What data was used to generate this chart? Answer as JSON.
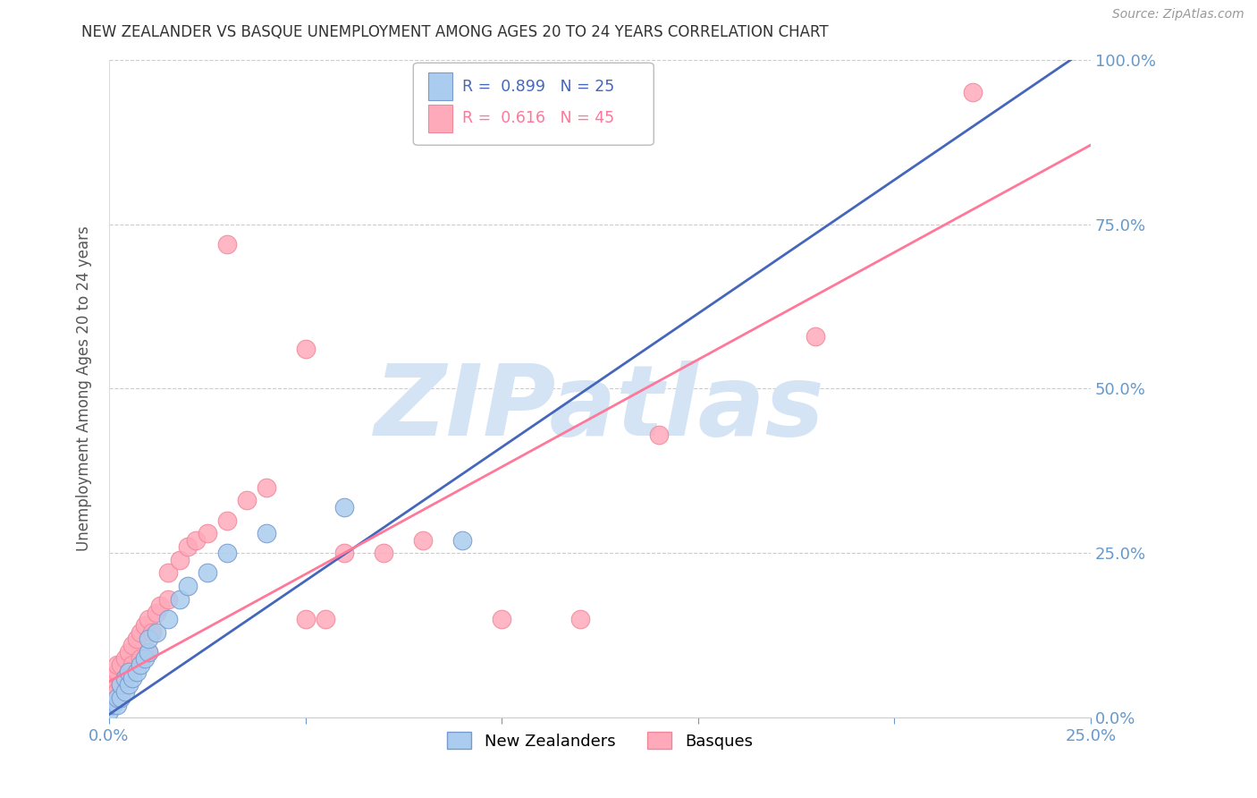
{
  "title": "NEW ZEALANDER VS BASQUE UNEMPLOYMENT AMONG AGES 20 TO 24 YEARS CORRELATION CHART",
  "source": "Source: ZipAtlas.com",
  "ylabel": "Unemployment Among Ages 20 to 24 years",
  "xlim": [
    0.0,
    0.25
  ],
  "ylim": [
    0.0,
    1.0
  ],
  "axis_color": "#6699cc",
  "grid_color": "#cccccc",
  "background_color": "#ffffff",
  "watermark_text": "ZIPatlas",
  "watermark_color": "#d4e4f4",
  "nz_color": "#aaccee",
  "nz_edge_color": "#7799cc",
  "basque_color": "#ffaabb",
  "basque_edge_color": "#ee8899",
  "nz_line_color": "#4466bb",
  "basque_line_color": "#ff7799",
  "nz_line_x": [
    0.0,
    0.25
  ],
  "nz_line_y": [
    0.005,
    1.02
  ],
  "basque_line_x": [
    0.0,
    0.25
  ],
  "basque_line_y": [
    0.055,
    0.87
  ],
  "nz_x": [
    0.0,
    0.001,
    0.002,
    0.002,
    0.003,
    0.003,
    0.004,
    0.004,
    0.005,
    0.005,
    0.006,
    0.007,
    0.008,
    0.009,
    0.01,
    0.01,
    0.012,
    0.015,
    0.018,
    0.02,
    0.025,
    0.03,
    0.04,
    0.06,
    0.09
  ],
  "nz_y": [
    0.01,
    0.02,
    0.02,
    0.03,
    0.03,
    0.05,
    0.04,
    0.06,
    0.05,
    0.07,
    0.06,
    0.07,
    0.08,
    0.09,
    0.1,
    0.12,
    0.13,
    0.15,
    0.18,
    0.2,
    0.22,
    0.25,
    0.28,
    0.32,
    0.27
  ],
  "basque_x": [
    0.0,
    0.0,
    0.001,
    0.001,
    0.002,
    0.002,
    0.002,
    0.003,
    0.003,
    0.004,
    0.004,
    0.005,
    0.005,
    0.006,
    0.006,
    0.007,
    0.008,
    0.008,
    0.009,
    0.01,
    0.01,
    0.011,
    0.012,
    0.013,
    0.015,
    0.015,
    0.018,
    0.02,
    0.022,
    0.025,
    0.03,
    0.035,
    0.04,
    0.05,
    0.055,
    0.06,
    0.07,
    0.08,
    0.1,
    0.12,
    0.14,
    0.18,
    0.22,
    0.03,
    0.05
  ],
  "basque_y": [
    0.02,
    0.05,
    0.03,
    0.06,
    0.04,
    0.07,
    0.08,
    0.05,
    0.08,
    0.06,
    0.09,
    0.07,
    0.1,
    0.08,
    0.11,
    0.12,
    0.09,
    0.13,
    0.14,
    0.1,
    0.15,
    0.13,
    0.16,
    0.17,
    0.18,
    0.22,
    0.24,
    0.26,
    0.27,
    0.28,
    0.3,
    0.33,
    0.35,
    0.15,
    0.15,
    0.25,
    0.25,
    0.27,
    0.15,
    0.15,
    0.43,
    0.58,
    0.95,
    0.72,
    0.56
  ]
}
